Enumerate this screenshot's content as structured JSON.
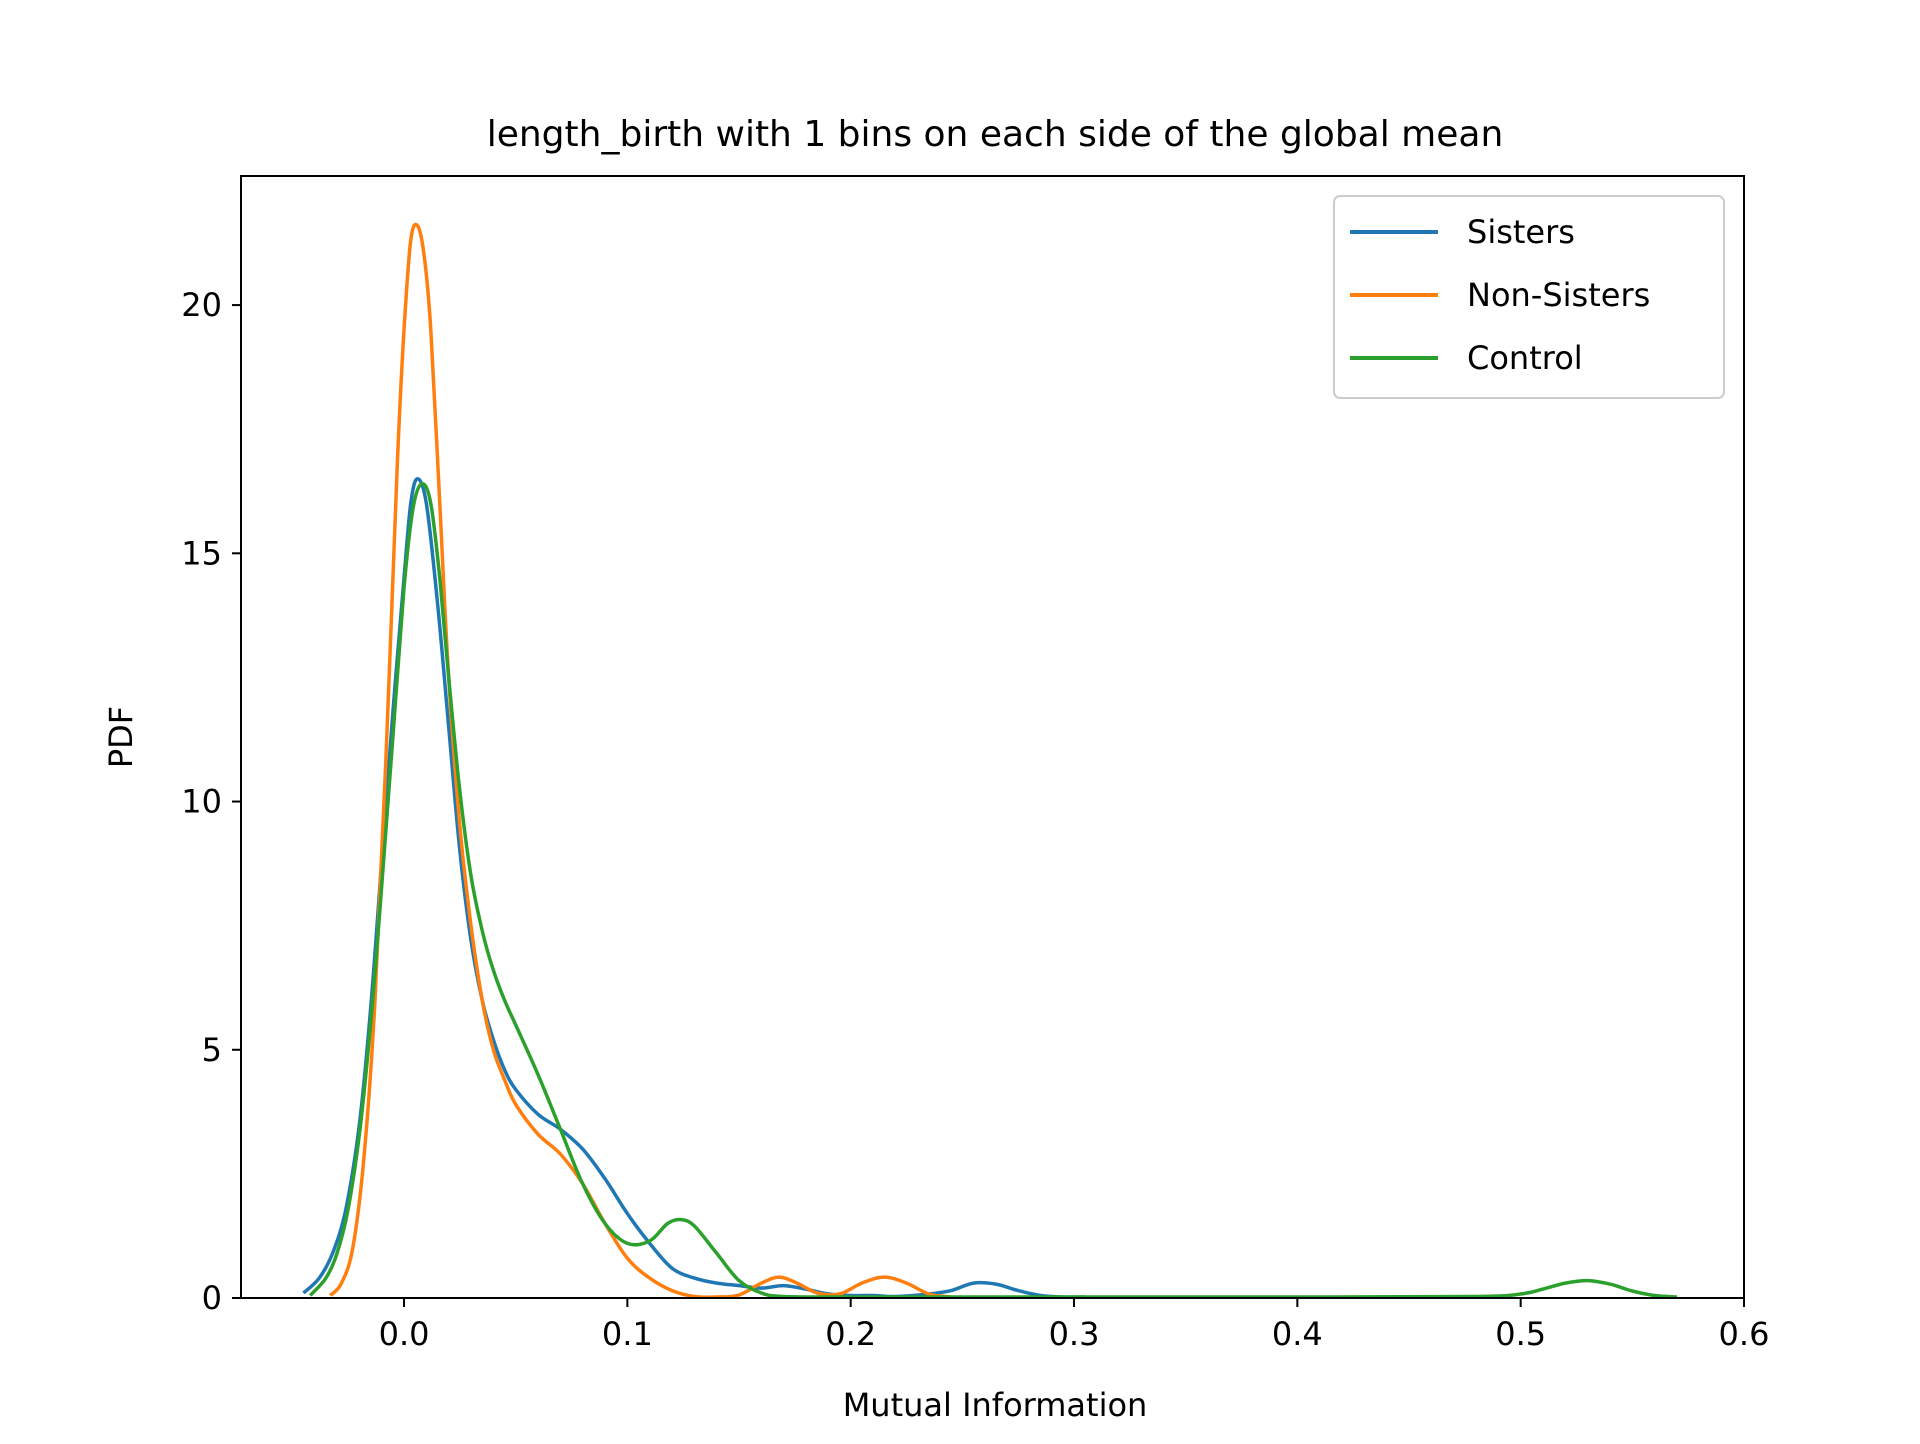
{
  "chart_data": {
    "type": "line",
    "title": "length_birth with 1 bins on each side of the global mean",
    "xlabel": "Mutual Information",
    "ylabel": "PDF",
    "xlim": [
      -0.073,
      0.6
    ],
    "ylim": [
      0,
      22.6
    ],
    "x_ticks": [
      0.0,
      0.1,
      0.2,
      0.3,
      0.4,
      0.5,
      0.6
    ],
    "x_tick_labels": [
      "0.0",
      "0.1",
      "0.2",
      "0.3",
      "0.4",
      "0.5",
      "0.6"
    ],
    "y_ticks": [
      0,
      5,
      10,
      15,
      20
    ],
    "y_tick_labels": [
      "0",
      "5",
      "10",
      "15",
      "20"
    ],
    "grid": false,
    "legend_position": "top-right",
    "series": [
      {
        "name": "Sisters",
        "color": "#1f77b4",
        "points": [
          [
            -0.045,
            0.1
          ],
          [
            -0.038,
            0.4
          ],
          [
            -0.032,
            0.9
          ],
          [
            -0.026,
            1.8
          ],
          [
            -0.02,
            3.5
          ],
          [
            -0.015,
            5.8
          ],
          [
            -0.01,
            8.8
          ],
          [
            -0.005,
            11.8
          ],
          [
            0.0,
            14.5
          ],
          [
            0.003,
            16.0
          ],
          [
            0.006,
            16.5
          ],
          [
            0.01,
            16.0
          ],
          [
            0.015,
            14.0
          ],
          [
            0.02,
            11.5
          ],
          [
            0.025,
            9.0
          ],
          [
            0.03,
            7.2
          ],
          [
            0.035,
            6.0
          ],
          [
            0.04,
            5.2
          ],
          [
            0.045,
            4.6
          ],
          [
            0.05,
            4.2
          ],
          [
            0.06,
            3.7
          ],
          [
            0.07,
            3.4
          ],
          [
            0.08,
            3.0
          ],
          [
            0.09,
            2.4
          ],
          [
            0.1,
            1.7
          ],
          [
            0.11,
            1.1
          ],
          [
            0.12,
            0.6
          ],
          [
            0.13,
            0.4
          ],
          [
            0.14,
            0.3
          ],
          [
            0.15,
            0.25
          ],
          [
            0.16,
            0.2
          ],
          [
            0.17,
            0.25
          ],
          [
            0.18,
            0.18
          ],
          [
            0.19,
            0.08
          ],
          [
            0.2,
            0.05
          ],
          [
            0.21,
            0.05
          ],
          [
            0.22,
            0.03
          ],
          [
            0.235,
            0.08
          ],
          [
            0.245,
            0.15
          ],
          [
            0.255,
            0.3
          ],
          [
            0.265,
            0.28
          ],
          [
            0.275,
            0.15
          ],
          [
            0.285,
            0.05
          ],
          [
            0.295,
            0.02
          ],
          [
            0.305,
            0.02
          ]
        ]
      },
      {
        "name": "Non-Sisters",
        "color": "#ff7f0e",
        "points": [
          [
            -0.033,
            0.05
          ],
          [
            -0.028,
            0.3
          ],
          [
            -0.023,
            1.0
          ],
          [
            -0.018,
            2.8
          ],
          [
            -0.013,
            6.0
          ],
          [
            -0.008,
            11.0
          ],
          [
            -0.003,
            16.8
          ],
          [
            0.0,
            19.5
          ],
          [
            0.003,
            21.3
          ],
          [
            0.006,
            21.6
          ],
          [
            0.009,
            21.0
          ],
          [
            0.012,
            19.5
          ],
          [
            0.016,
            16.0
          ],
          [
            0.02,
            12.5
          ],
          [
            0.025,
            9.5
          ],
          [
            0.03,
            7.5
          ],
          [
            0.035,
            6.0
          ],
          [
            0.04,
            5.0
          ],
          [
            0.045,
            4.4
          ],
          [
            0.05,
            3.9
          ],
          [
            0.06,
            3.3
          ],
          [
            0.07,
            2.9
          ],
          [
            0.08,
            2.3
          ],
          [
            0.09,
            1.5
          ],
          [
            0.1,
            0.8
          ],
          [
            0.11,
            0.4
          ],
          [
            0.12,
            0.15
          ],
          [
            0.13,
            0.03
          ],
          [
            0.14,
            0.02
          ],
          [
            0.15,
            0.06
          ],
          [
            0.16,
            0.3
          ],
          [
            0.168,
            0.42
          ],
          [
            0.176,
            0.3
          ],
          [
            0.185,
            0.1
          ],
          [
            0.195,
            0.08
          ],
          [
            0.205,
            0.3
          ],
          [
            0.215,
            0.42
          ],
          [
            0.225,
            0.3
          ],
          [
            0.235,
            0.08
          ],
          [
            0.245,
            0.02
          ]
        ]
      },
      {
        "name": "Control",
        "color": "#2ca02c",
        "points": [
          [
            -0.042,
            0.05
          ],
          [
            -0.035,
            0.4
          ],
          [
            -0.03,
            0.9
          ],
          [
            -0.025,
            1.8
          ],
          [
            -0.02,
            3.3
          ],
          [
            -0.015,
            5.5
          ],
          [
            -0.01,
            8.3
          ],
          [
            -0.005,
            11.3
          ],
          [
            0.0,
            14.3
          ],
          [
            0.004,
            15.9
          ],
          [
            0.008,
            16.4
          ],
          [
            0.012,
            16.0
          ],
          [
            0.016,
            14.5
          ],
          [
            0.02,
            12.5
          ],
          [
            0.025,
            10.2
          ],
          [
            0.03,
            8.5
          ],
          [
            0.035,
            7.4
          ],
          [
            0.04,
            6.6
          ],
          [
            0.045,
            6.0
          ],
          [
            0.05,
            5.5
          ],
          [
            0.06,
            4.5
          ],
          [
            0.07,
            3.4
          ],
          [
            0.08,
            2.3
          ],
          [
            0.09,
            1.5
          ],
          [
            0.1,
            1.1
          ],
          [
            0.11,
            1.15
          ],
          [
            0.118,
            1.5
          ],
          [
            0.124,
            1.58
          ],
          [
            0.13,
            1.45
          ],
          [
            0.14,
            0.9
          ],
          [
            0.15,
            0.35
          ],
          [
            0.16,
            0.1
          ],
          [
            0.17,
            0.03
          ],
          [
            0.2,
            0.02
          ],
          [
            0.3,
            0.02
          ],
          [
            0.4,
            0.02
          ],
          [
            0.48,
            0.03
          ],
          [
            0.5,
            0.08
          ],
          [
            0.51,
            0.18
          ],
          [
            0.52,
            0.3
          ],
          [
            0.53,
            0.35
          ],
          [
            0.54,
            0.28
          ],
          [
            0.55,
            0.14
          ],
          [
            0.56,
            0.05
          ],
          [
            0.57,
            0.02
          ]
        ]
      }
    ]
  }
}
